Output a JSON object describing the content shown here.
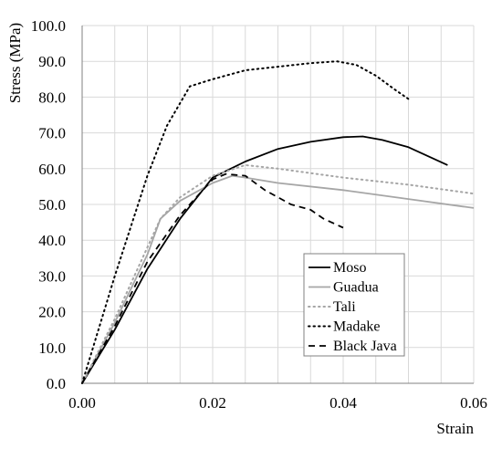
{
  "chart_data": {
    "type": "line",
    "xlabel": "Strain",
    "ylabel": "Stress (MPa)",
    "xlim": [
      0,
      0.06
    ],
    "ylim": [
      0,
      100
    ],
    "x_ticks": [
      "0.00",
      "0.02",
      "0.04",
      "0.06"
    ],
    "y_ticks": [
      "0.0",
      "10.0",
      "20.0",
      "30.0",
      "40.0",
      "50.0",
      "60.0",
      "70.0",
      "80.0",
      "90.0",
      "100.0"
    ],
    "grid": true,
    "legend_position": "lower-right",
    "series": [
      {
        "name": "Moso",
        "style": "solid",
        "color": "#000000",
        "points": [
          [
            0,
            0
          ],
          [
            0.005,
            15
          ],
          [
            0.01,
            32
          ],
          [
            0.015,
            46
          ],
          [
            0.02,
            57.5
          ],
          [
            0.025,
            62
          ],
          [
            0.03,
            65.5
          ],
          [
            0.035,
            67.5
          ],
          [
            0.04,
            68.8
          ],
          [
            0.043,
            69
          ],
          [
            0.046,
            68
          ],
          [
            0.05,
            66
          ],
          [
            0.056,
            61
          ]
        ]
      },
      {
        "name": "Guadua",
        "style": "solid",
        "color": "#a6a6a6",
        "points": [
          [
            0,
            0
          ],
          [
            0.005,
            17
          ],
          [
            0.01,
            36
          ],
          [
            0.012,
            46
          ],
          [
            0.015,
            51
          ],
          [
            0.02,
            56
          ],
          [
            0.023,
            58
          ],
          [
            0.025,
            57.5
          ],
          [
            0.03,
            56
          ],
          [
            0.04,
            54
          ],
          [
            0.05,
            51.5
          ],
          [
            0.06,
            49
          ]
        ]
      },
      {
        "name": "Tali",
        "style": "dotted",
        "color": "#a6a6a6",
        "points": [
          [
            0,
            0
          ],
          [
            0.005,
            18
          ],
          [
            0.01,
            38
          ],
          [
            0.012,
            46
          ],
          [
            0.015,
            52
          ],
          [
            0.02,
            58
          ],
          [
            0.025,
            61
          ],
          [
            0.03,
            60
          ],
          [
            0.04,
            57.5
          ],
          [
            0.05,
            55.5
          ],
          [
            0.06,
            53
          ]
        ]
      },
      {
        "name": "Madake",
        "style": "dotted",
        "color": "#000000",
        "points": [
          [
            0,
            0
          ],
          [
            0.005,
            30
          ],
          [
            0.01,
            58
          ],
          [
            0.013,
            72
          ],
          [
            0.0165,
            83
          ],
          [
            0.02,
            85
          ],
          [
            0.025,
            87.5
          ],
          [
            0.03,
            88.5
          ],
          [
            0.035,
            89.5
          ],
          [
            0.039,
            90
          ],
          [
            0.042,
            89
          ],
          [
            0.045,
            86
          ],
          [
            0.048,
            82
          ],
          [
            0.05,
            79.5
          ]
        ]
      },
      {
        "name": "Black Java",
        "style": "dashed",
        "color": "#000000",
        "points": [
          [
            0,
            0
          ],
          [
            0.005,
            16
          ],
          [
            0.01,
            34
          ],
          [
            0.015,
            47
          ],
          [
            0.018,
            53
          ],
          [
            0.02,
            57
          ],
          [
            0.022,
            58.5
          ],
          [
            0.025,
            58
          ],
          [
            0.028,
            54
          ],
          [
            0.032,
            50
          ],
          [
            0.035,
            48.5
          ],
          [
            0.037,
            46
          ],
          [
            0.04,
            43.5
          ]
        ]
      }
    ]
  }
}
